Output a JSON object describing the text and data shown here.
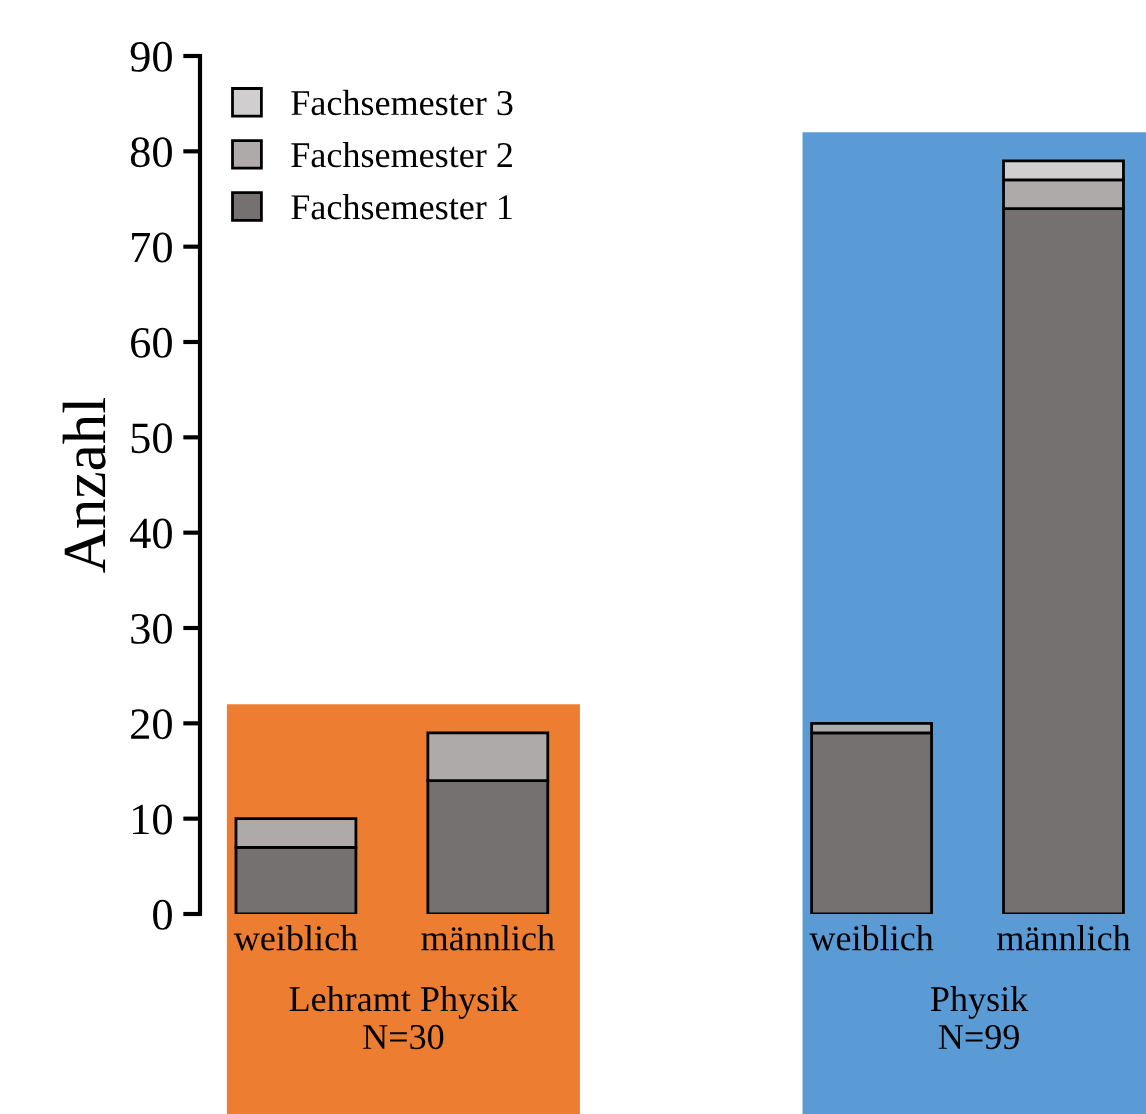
{
  "chart_data": {
    "type": "bar",
    "stacked": true,
    "ylabel": "Anzahl",
    "categories": [
      "weiblich",
      "männlich",
      null,
      "weiblich",
      "männlich"
    ],
    "series": [
      {
        "name": "Fachsemester 1",
        "color": "#767171",
        "values": [
          7,
          14,
          null,
          19,
          74
        ]
      },
      {
        "name": "Fachsemester 2",
        "color": "#aeaaaa",
        "values": [
          3,
          5,
          null,
          1,
          3
        ]
      },
      {
        "name": "Fachsemester 3",
        "color": "#d0cece",
        "values": [
          null,
          null,
          null,
          null,
          2
        ]
      }
    ],
    "annotations": [
      "Lehramt Physik\nN=30",
      "Physik\nN=99"
    ],
    "ylim": [
      0,
      90
    ],
    "yticks": [
      0,
      10,
      20,
      30,
      40,
      50,
      60,
      70,
      80,
      90
    ],
    "grid": false,
    "legend": "top left"
  }
}
